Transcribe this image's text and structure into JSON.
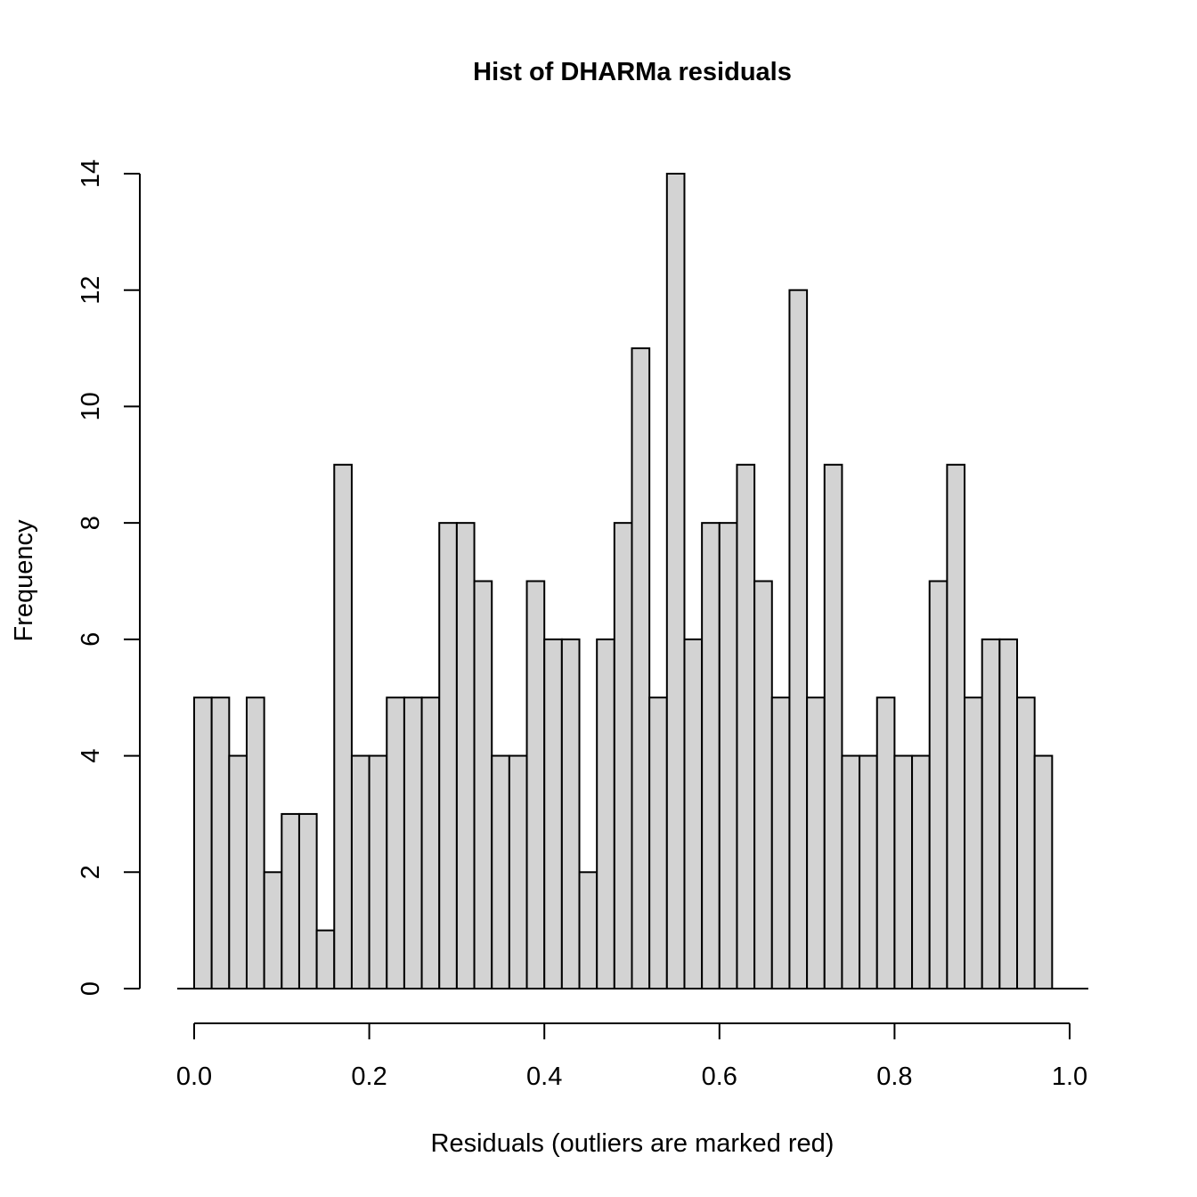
{
  "chart_data": {
    "type": "bar",
    "title": "Hist of DHARMa residuals",
    "xlabel": "Residuals (outliers are marked red)",
    "ylabel": "Frequency",
    "bin_width": 0.02,
    "bin_start": 0.0,
    "values": [
      5,
      5,
      4,
      5,
      2,
      3,
      3,
      1,
      9,
      4,
      4,
      5,
      5,
      5,
      8,
      8,
      7,
      4,
      4,
      7,
      6,
      6,
      2,
      6,
      8,
      11,
      5,
      14,
      6,
      8,
      8,
      9,
      7,
      5,
      12,
      5,
      9,
      4,
      4,
      5,
      4,
      4,
      7,
      9,
      5,
      6,
      6,
      5,
      4
    ],
    "xlim": [
      0.0,
      1.0
    ],
    "ylim": [
      0,
      14
    ],
    "x_ticks": [
      "0.0",
      "0.2",
      "0.4",
      "0.6",
      "0.8",
      "1.0"
    ],
    "x_tick_values": [
      0.0,
      0.2,
      0.4,
      0.6,
      0.8,
      1.0
    ],
    "y_ticks": [
      "0",
      "2",
      "4",
      "6",
      "8",
      "10",
      "12",
      "14"
    ],
    "y_tick_values": [
      0,
      2,
      4,
      6,
      8,
      10,
      12,
      14
    ],
    "bar_fill": "#d3d3d3",
    "bar_stroke": "#000000",
    "grid": false,
    "legend": "none"
  }
}
